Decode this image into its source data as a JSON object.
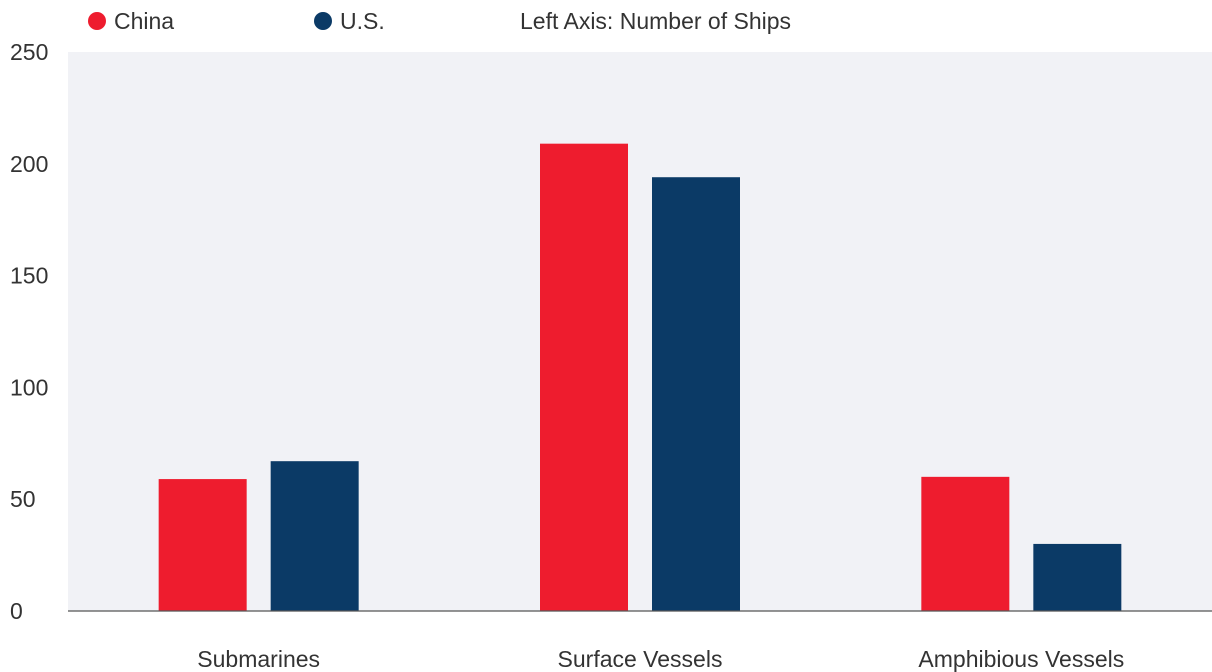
{
  "legend": {
    "items": [
      {
        "label": "China",
        "color": "#ee1c2e"
      },
      {
        "label": "U.S.",
        "color": "#0b3a66"
      }
    ],
    "axis_note": "Left Axis: Number of Ships"
  },
  "chart_data": {
    "type": "bar",
    "categories": [
      "Submarines",
      "Surface Vessels",
      "Amphibious Vessels"
    ],
    "series": [
      {
        "name": "China",
        "color": "#ee1c2e",
        "values": [
          59,
          209,
          60
        ]
      },
      {
        "name": "U.S.",
        "color": "#0b3a66",
        "values": [
          67,
          194,
          30
        ]
      }
    ],
    "yticks": [
      0,
      50,
      100,
      150,
      200,
      250
    ],
    "ylim": [
      0,
      250
    ],
    "grid": false,
    "legend_position": "top-left",
    "plot_background": "#f1f2f6"
  }
}
